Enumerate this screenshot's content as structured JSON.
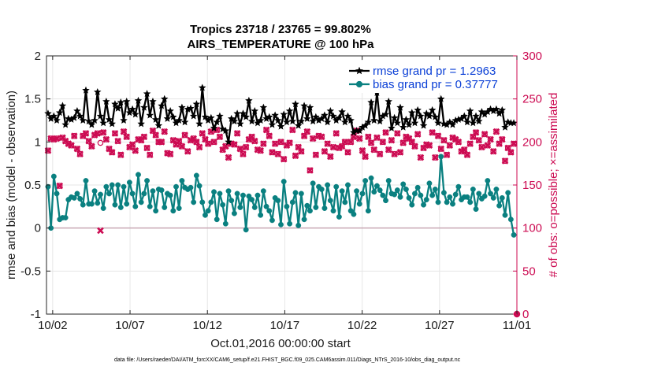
{
  "chart_data": {
    "type": "line",
    "title": "Tropics 23718 / 23765 = 99.802%",
    "subtitle": "AIRS_TEMPERATURE @ 100 hPa",
    "xlabel": "Oct.01,2016 00:00:00 start",
    "ylabel": "rmse and bias (model - observation)",
    "ylabel_right": "# of obs: o=possible; ×=assimilated",
    "footnote": "data file: /Users/raeder/DAI/ATM_forcXX/CAM6_setup/f.e21.FHIST_BGC.f09_025.CAM6assim.011/Diags_NTrS_2016-10/obs_diag_output.nc",
    "xlim": [
      0.6,
      31.0
    ],
    "ylim": [
      -1,
      2
    ],
    "ylim_right": [
      0,
      300
    ],
    "xticks": [
      1,
      6,
      11,
      16,
      21,
      26,
      31
    ],
    "xtick_labels": [
      "10/02",
      "10/07",
      "10/12",
      "10/17",
      "10/22",
      "10/27",
      "11/01"
    ],
    "yticks": [
      -1,
      -0.5,
      0,
      0.5,
      1,
      1.5,
      2
    ],
    "ytick_labels": [
      "-1",
      "-0.5",
      "0",
      "0.5",
      "1",
      "1.5",
      "2"
    ],
    "yticks_right": [
      0,
      50,
      100,
      150,
      200,
      250,
      300
    ],
    "ytick_labels_right": [
      "0",
      "50",
      "100",
      "150",
      "200",
      "250",
      "300"
    ],
    "zero_line": 0,
    "legend_location": "top-right",
    "series": [
      {
        "name": "rmse grand pr = 1.2963",
        "color": "#000000",
        "axis": "left",
        "marker": "star",
        "values": [
          1.33,
          1.27,
          1.3,
          1.25,
          1.34,
          1.42,
          1.2,
          1.27,
          1.26,
          1.28,
          1.36,
          1.3,
          1.25,
          1.6,
          1.24,
          1.2,
          1.25,
          1.58,
          1.3,
          1.22,
          1.47,
          1.26,
          1.21,
          1.44,
          1.39,
          1.46,
          1.25,
          1.47,
          1.34,
          1.38,
          1.32,
          1.48,
          1.21,
          1.4,
          1.56,
          1.31,
          1.47,
          1.26,
          1.19,
          1.42,
          1.5,
          1.27,
          1.36,
          1.29,
          1.22,
          1.25,
          1.4,
          1.23,
          1.38,
          1.39,
          1.3,
          1.44,
          1.21,
          1.63,
          1.29,
          1.25,
          1.28,
          1.16,
          1.23,
          1.3,
          1.15,
          1.13,
          1.0,
          1.27,
          1.24,
          1.33,
          1.21,
          1.33,
          1.29,
          1.48,
          1.24,
          1.36,
          1.22,
          1.25,
          1.4,
          1.27,
          1.29,
          1.2,
          1.31,
          1.25,
          1.18,
          1.32,
          1.23,
          1.36,
          1.24,
          1.44,
          1.19,
          1.24,
          1.42,
          1.27,
          1.4,
          1.24,
          1.29,
          1.25,
          1.27,
          1.31,
          1.23,
          1.36,
          1.3,
          1.25,
          1.28,
          1.35,
          1.23,
          1.3,
          1.25,
          1.11,
          1.13,
          1.13,
          1.17,
          1.19,
          1.23,
          1.46,
          1.25,
          1.57,
          1.24,
          1.3,
          1.32,
          1.47,
          1.16,
          1.28,
          1.22,
          1.4,
          1.17,
          1.26,
          1.2,
          1.34,
          1.22,
          1.37,
          1.3,
          1.19,
          1.33,
          1.3,
          1.37,
          1.29,
          1.22,
          1.5,
          1.21,
          1.2,
          1.23,
          1.2,
          1.25,
          1.26,
          1.27,
          1.3,
          1.23,
          1.36,
          1.22,
          1.3,
          1.24,
          1.35,
          1.32,
          1.35,
          1.38,
          1.36,
          1.38,
          1.33,
          1.37,
          1.17,
          1.23,
          1.22,
          1.22
        ]
      },
      {
        "name": "bias grand pr = 0.37777",
        "color": "#0a8080",
        "axis": "left",
        "marker": "circle",
        "values": [
          0.48,
          0.0,
          0.6,
          0.4,
          0.1,
          0.12,
          0.12,
          0.33,
          0.36,
          0.35,
          0.4,
          0.34,
          0.27,
          0.55,
          0.28,
          0.28,
          0.43,
          0.29,
          0.39,
          0.23,
          0.48,
          0.4,
          0.5,
          0.27,
          0.5,
          0.24,
          0.48,
          0.28,
          0.53,
          0.4,
          0.25,
          0.62,
          0.3,
          0.4,
          0.55,
          0.25,
          0.43,
          0.2,
          0.45,
          0.44,
          0.24,
          0.4,
          0.38,
          0.2,
          0.48,
          0.23,
          0.55,
          0.47,
          0.45,
          0.47,
          0.3,
          0.61,
          0.49,
          0.3,
          0.15,
          0.2,
          0.3,
          0.42,
          0.1,
          0.4,
          0.27,
          0.05,
          0.43,
          0.32,
          0.17,
          0.4,
          0.24,
          0.38,
          -0.02,
          0.37,
          0.33,
          0.24,
          0.38,
          0.15,
          0.43,
          0.25,
          0.2,
          0.09,
          0.35,
          0.32,
          0.04,
          0.54,
          0.25,
          0.05,
          0.3,
          0.41,
          0.03,
          0.4,
          0.1,
          0.26,
          0.2,
          0.52,
          0.24,
          0.48,
          0.45,
          0.23,
          0.5,
          0.32,
          0.2,
          0.48,
          0.13,
          0.43,
          0.3,
          0.5,
          0.2,
          0.16,
          0.43,
          0.28,
          0.4,
          0.55,
          0.2,
          0.58,
          0.42,
          0.49,
          0.44,
          0.38,
          0.32,
          0.55,
          0.4,
          0.39,
          0.44,
          0.36,
          0.51,
          0.45,
          0.35,
          0.27,
          0.4,
          0.47,
          0.38,
          0.27,
          0.33,
          0.52,
          0.38,
          0.45,
          0.3,
          0.83,
          0.41,
          0.3,
          0.36,
          0.28,
          0.39,
          0.48,
          0.33,
          0.36,
          0.36,
          0.3,
          0.45,
          0.22,
          0.4,
          0.34,
          0.37,
          0.55,
          0.4,
          0.35,
          0.45,
          0.26,
          0.35,
          0.15,
          0.41,
          0.1,
          -0.08
        ]
      },
      {
        "name": "obs possible",
        "color": "#cc0b52",
        "axis": "right",
        "marker": "circle",
        "values": [
          190,
          204,
          203,
          204,
          149,
          205,
          201,
          198,
          196,
          207,
          192,
          186,
          207,
          210,
          201,
          195,
          208,
          210,
          199,
          211,
          203,
          192,
          188,
          210,
          201,
          185,
          212,
          206,
          194,
          197,
          190,
          203,
          202,
          206,
          193,
          185,
          213,
          208,
          200,
          200,
          212,
          187,
          186,
          202,
          197,
          201,
          195,
          208,
          189,
          202,
          204,
          200,
          194,
          210,
          203,
          198,
          212,
          200,
          214,
          206,
          191,
          195,
          182,
          198,
          197,
          210,
          192,
          186,
          194,
          203,
          206,
          201,
          191,
          190,
          198,
          214,
          207,
          188,
          198,
          186,
          200,
          180,
          196,
          199,
          214,
          184,
          194,
          189,
          207,
          212,
          167,
          204,
          185,
          207,
          206,
          189,
          198,
          183,
          194,
          210,
          193,
          195,
          200,
          188,
          200,
          206,
          213,
          204,
          190,
          183,
          206,
          199,
          191,
          205,
          186,
          200,
          211,
          191,
          202,
          186,
          210,
          188,
          199,
          206,
          204,
          200,
          195,
          209,
          182,
          193,
          197,
          196,
          211,
          182,
          207,
          192,
          202,
          185,
          196,
          205,
          203,
          200,
          189,
          191,
          185,
          198,
          206,
          211,
          202,
          194,
          209,
          196,
          203,
          189,
          212,
          198,
          203,
          178,
          193,
          188,
          198
        ]
      },
      {
        "name": "obs assimilated",
        "color": "#cc0b52",
        "axis": "right",
        "marker": "x",
        "values": [
          190,
          204,
          203,
          204,
          149,
          205,
          201,
          198,
          196,
          207,
          192,
          186,
          207,
          210,
          201,
          195,
          208,
          210,
          97,
          211,
          203,
          192,
          188,
          210,
          201,
          185,
          212,
          206,
          194,
          197,
          190,
          203,
          202,
          206,
          193,
          185,
          213,
          208,
          200,
          200,
          212,
          187,
          186,
          202,
          197,
          201,
          195,
          208,
          189,
          202,
          204,
          200,
          194,
          210,
          203,
          198,
          212,
          200,
          214,
          206,
          191,
          195,
          182,
          198,
          197,
          210,
          192,
          186,
          194,
          203,
          206,
          201,
          191,
          190,
          198,
          214,
          207,
          188,
          198,
          186,
          200,
          180,
          196,
          199,
          214,
          184,
          194,
          189,
          207,
          212,
          167,
          204,
          185,
          207,
          206,
          189,
          198,
          183,
          194,
          210,
          193,
          195,
          200,
          188,
          200,
          206,
          213,
          204,
          190,
          183,
          206,
          199,
          191,
          205,
          186,
          200,
          211,
          191,
          202,
          186,
          210,
          188,
          199,
          206,
          204,
          200,
          195,
          209,
          182,
          193,
          197,
          196,
          211,
          182,
          207,
          192,
          202,
          185,
          196,
          205,
          203,
          200,
          189,
          191,
          185,
          198,
          206,
          211,
          202,
          194,
          209,
          196,
          203,
          189,
          212,
          198,
          203,
          178,
          193,
          188,
          198
        ]
      }
    ],
    "extra_points": [
      {
        "series": "obs possible",
        "x": 31.0,
        "value": 0
      }
    ]
  }
}
